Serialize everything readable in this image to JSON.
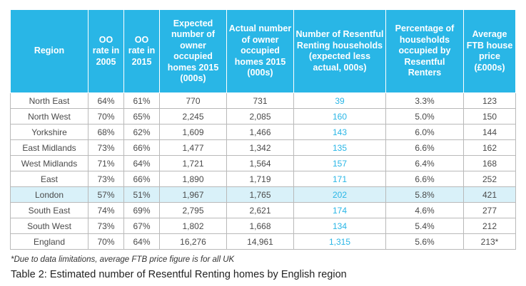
{
  "table": {
    "headers": [
      "Region",
      "OO rate in 2005",
      "OO rate in 2015",
      "Expected number of owner occupied homes 2015 (000s)",
      "Actual number of owner occupied homes 2015 (000s)",
      "Number of Resentful Renting households (expected less actual, 000s)",
      "Percentage of households occupied by Resentful Renters",
      "Average FTB house price (£000s)"
    ],
    "rows": [
      [
        "North East",
        "64%",
        "61%",
        "770",
        "731",
        "39",
        "3.3%",
        "123"
      ],
      [
        "North West",
        "70%",
        "65%",
        "2,245",
        "2,085",
        "160",
        "5.0%",
        "150"
      ],
      [
        "Yorkshire",
        "68%",
        "62%",
        "1,609",
        "1,466",
        "143",
        "6.0%",
        "144"
      ],
      [
        "East Midlands",
        "73%",
        "66%",
        "1,477",
        "1,342",
        "135",
        "6.6%",
        "162"
      ],
      [
        "West Midlands",
        "71%",
        "64%",
        "1,721",
        "1,564",
        "157",
        "6.4%",
        "168"
      ],
      [
        "East",
        "73%",
        "66%",
        "1,890",
        "1,719",
        "171",
        "6.6%",
        "252"
      ],
      [
        "London",
        "57%",
        "51%",
        "1,967",
        "1,765",
        "202",
        "5.8%",
        "421"
      ],
      [
        "South East",
        "74%",
        "69%",
        "2,795",
        "2,621",
        "174",
        "4.6%",
        "277"
      ],
      [
        "South West",
        "73%",
        "67%",
        "1,802",
        "1,668",
        "134",
        "5.4%",
        "212"
      ],
      [
        "England",
        "70%",
        "64%",
        "16,276",
        "14,961",
        "1,315",
        "5.6%",
        "213*"
      ]
    ]
  },
  "note": "*Due to data limitations, average FTB price figure is for all UK",
  "caption": "Table 2: Estimated number of Resentful Renting homes by English region",
  "colors": {
    "header_bg": "#29b6e6",
    "highlight_bg": "#d9f1f9",
    "accent_text": "#29b6e6"
  }
}
